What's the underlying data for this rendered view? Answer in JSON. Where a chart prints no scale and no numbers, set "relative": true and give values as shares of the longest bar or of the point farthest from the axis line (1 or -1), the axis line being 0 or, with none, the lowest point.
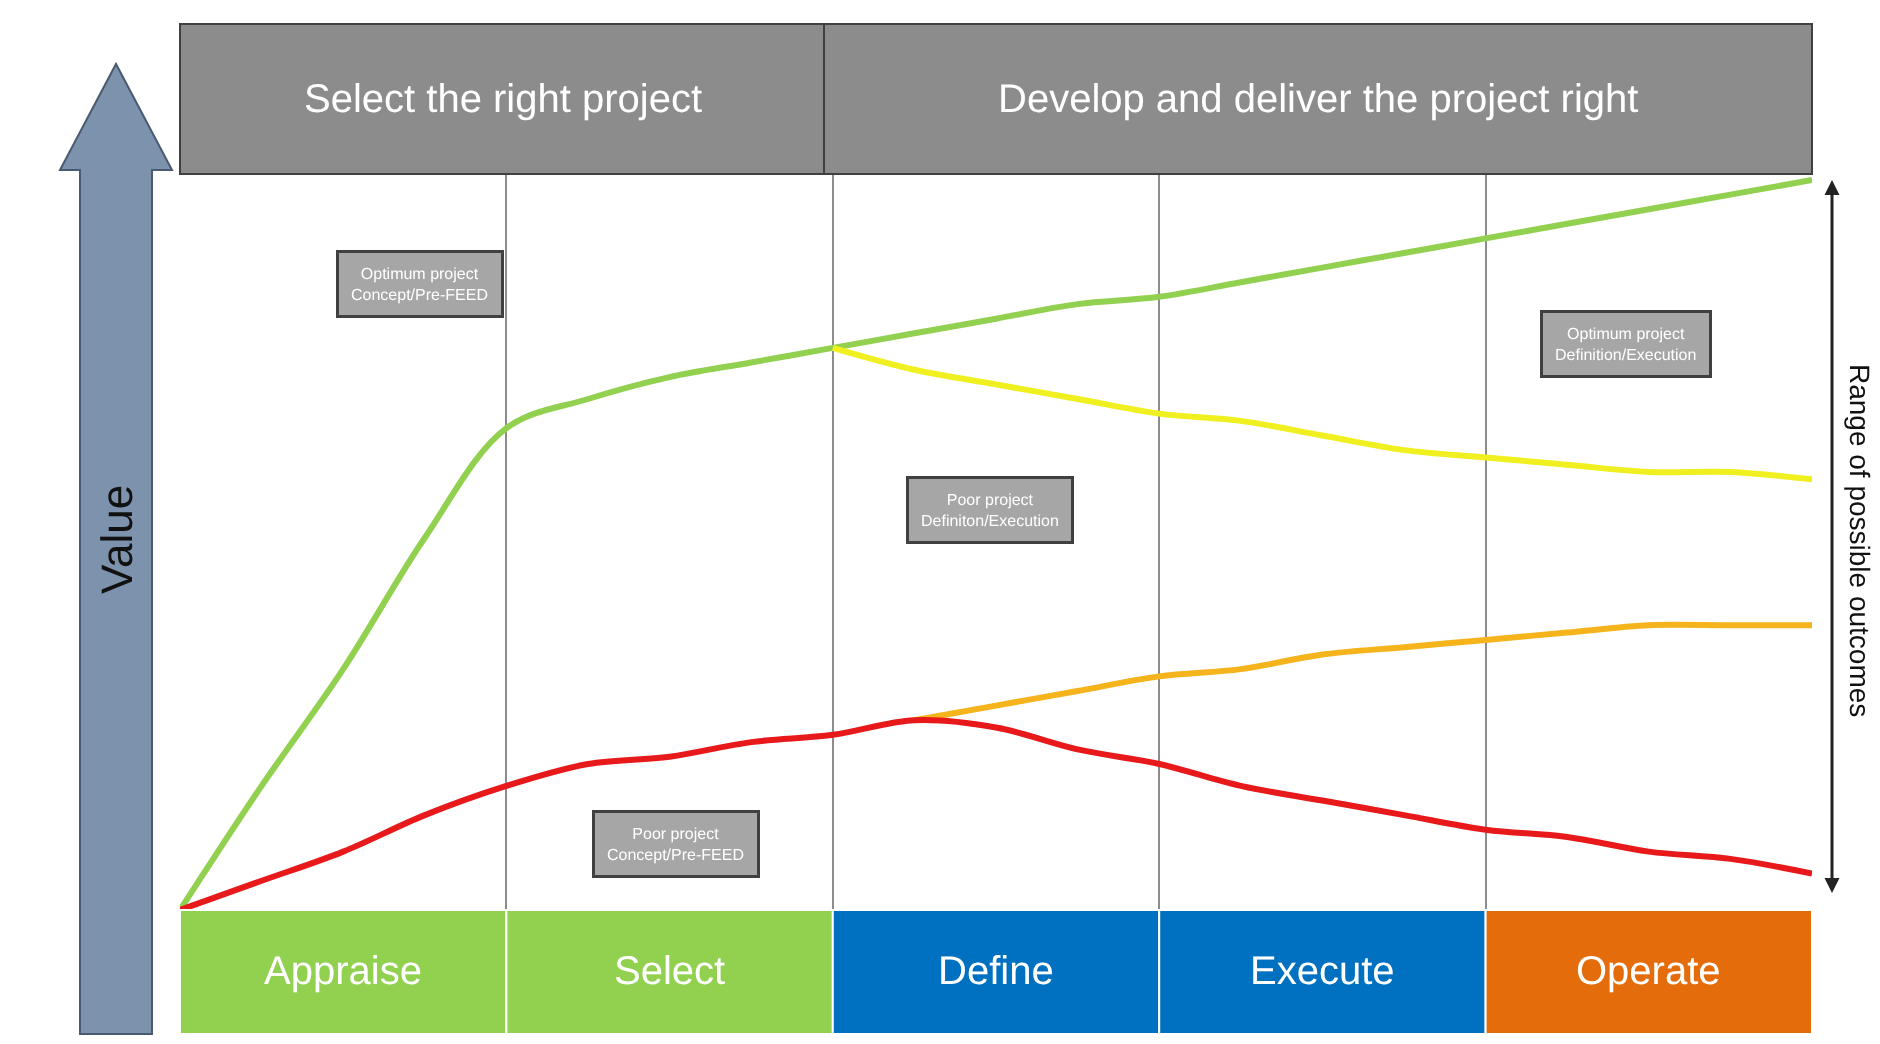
{
  "chart_data": {
    "type": "line",
    "relative": true,
    "categories": [
      null,
      null,
      null,
      null,
      null,
      null,
      null,
      null,
      null,
      null,
      null,
      null,
      null,
      null,
      null,
      null,
      null,
      null,
      null,
      null,
      null
    ],
    "series": [
      {
        "color": "#92d050",
        "values": [
          0,
          0.17,
          0.33,
          0.51,
          0.66,
          0.7,
          0.73,
          0.75,
          0.77,
          0.79,
          0.81,
          0.83,
          0.84,
          0.86,
          0.88,
          0.9,
          0.92,
          0.94,
          0.96,
          0.98,
          1.0
        ]
      },
      {
        "color": "#f0f020",
        "values": [
          null,
          null,
          null,
          null,
          null,
          null,
          null,
          null,
          0.77,
          0.74,
          0.72,
          0.7,
          0.68,
          0.67,
          0.65,
          0.63,
          0.62,
          0.61,
          0.6,
          0.6,
          0.59
        ]
      },
      {
        "color": "#f5b31c",
        "values": [
          null,
          null,
          null,
          null,
          null,
          null,
          null,
          null,
          null,
          0.26,
          0.28,
          0.3,
          0.32,
          0.33,
          0.35,
          0.36,
          0.37,
          0.38,
          0.39,
          0.39,
          0.39
        ]
      },
      {
        "color": "#e8191b",
        "values": [
          0,
          0.04,
          0.08,
          0.13,
          0.17,
          0.2,
          0.21,
          0.23,
          0.24,
          0.26,
          0.25,
          0.22,
          0.2,
          0.17,
          0.15,
          0.13,
          0.11,
          0.1,
          0.08,
          0.07,
          0.05
        ]
      }
    ],
    "annotations": [
      "Select the right project",
      "Develop and deliver the project right",
      "Value",
      "Range of possible outcomes",
      "Optimum project\nConcept/Pre-FEED",
      "Poor project\nConcept/Pre-FEED",
      "Poor project\nDefiniton/Execution",
      "Optimum project\nDefinition/Execution",
      "Appraise",
      "Select",
      "Define",
      "Execute",
      "Operate"
    ],
    "grid": "x",
    "marker": "none",
    "line_style": "solid"
  }
}
